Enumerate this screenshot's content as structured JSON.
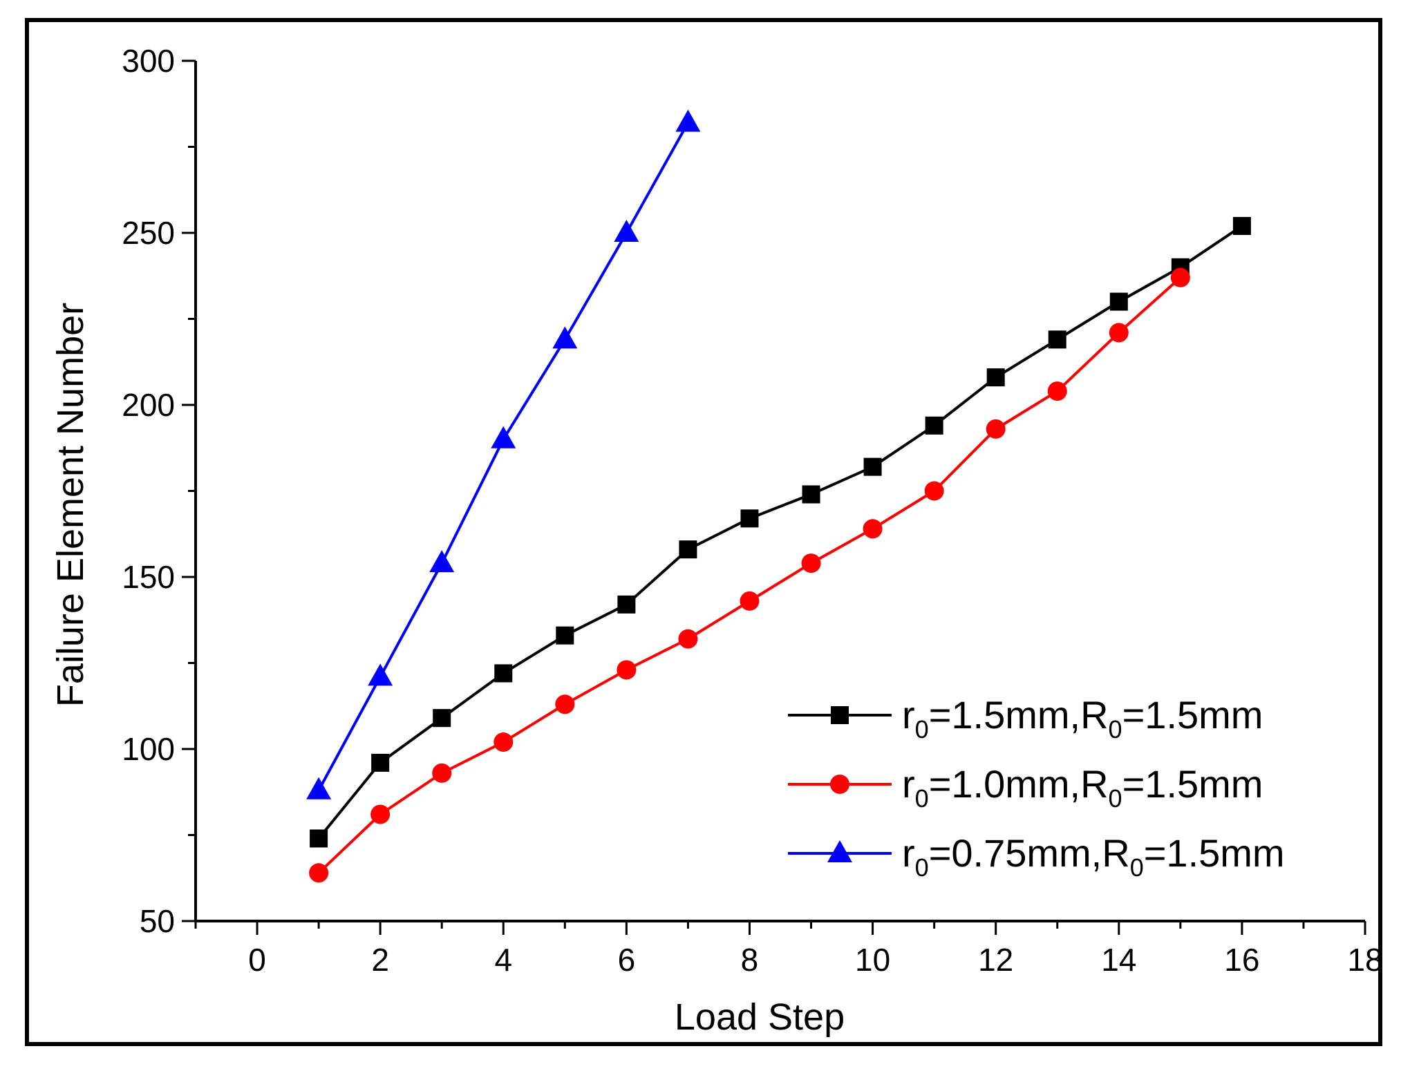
{
  "chart_data": {
    "type": "line",
    "title": "",
    "xlabel": "Load Step",
    "ylabel": "Failure Element Number",
    "xlim": [
      -1,
      18
    ],
    "ylim": [
      50,
      300
    ],
    "xticks": [
      0,
      2,
      4,
      6,
      8,
      10,
      12,
      14,
      16,
      18
    ],
    "yticks": [
      50,
      100,
      150,
      200,
      250,
      300
    ],
    "grid": false,
    "legend_position": "bottom-right",
    "series": [
      {
        "name": "r0=1.5mm,R0=1.5mm",
        "label_parts": [
          "r",
          "0",
          "=1.5mm,R",
          "0",
          "=1.5mm"
        ],
        "color": "#000000",
        "marker": "square",
        "x": [
          1,
          2,
          3,
          4,
          5,
          6,
          7,
          8,
          9,
          10,
          11,
          12,
          13,
          14,
          15,
          16
        ],
        "y": [
          74,
          96,
          109,
          122,
          133,
          142,
          158,
          167,
          174,
          182,
          194,
          208,
          219,
          230,
          240,
          252
        ]
      },
      {
        "name": "r0=1.0mm,R0=1.5mm",
        "label_parts": [
          "r",
          "0",
          "=1.0mm,R",
          "0",
          "=1.5mm"
        ],
        "color": "#ff0000",
        "marker": "circle",
        "x": [
          1,
          2,
          3,
          4,
          5,
          6,
          7,
          8,
          9,
          10,
          11,
          12,
          13,
          14,
          15
        ],
        "y": [
          64,
          81,
          93,
          102,
          113,
          123,
          132,
          143,
          154,
          164,
          175,
          193,
          204,
          221,
          237
        ]
      },
      {
        "name": "r0=0.75mm,R0=1.5mm",
        "label_parts": [
          "r",
          "0",
          "=0.75mm,R",
          "0",
          "=1.5mm"
        ],
        "color": "#0000ff",
        "marker": "triangle",
        "x": [
          1,
          2,
          3,
          4,
          5,
          6,
          7
        ],
        "y": [
          88,
          121,
          154,
          190,
          219,
          250,
          282
        ]
      }
    ]
  }
}
